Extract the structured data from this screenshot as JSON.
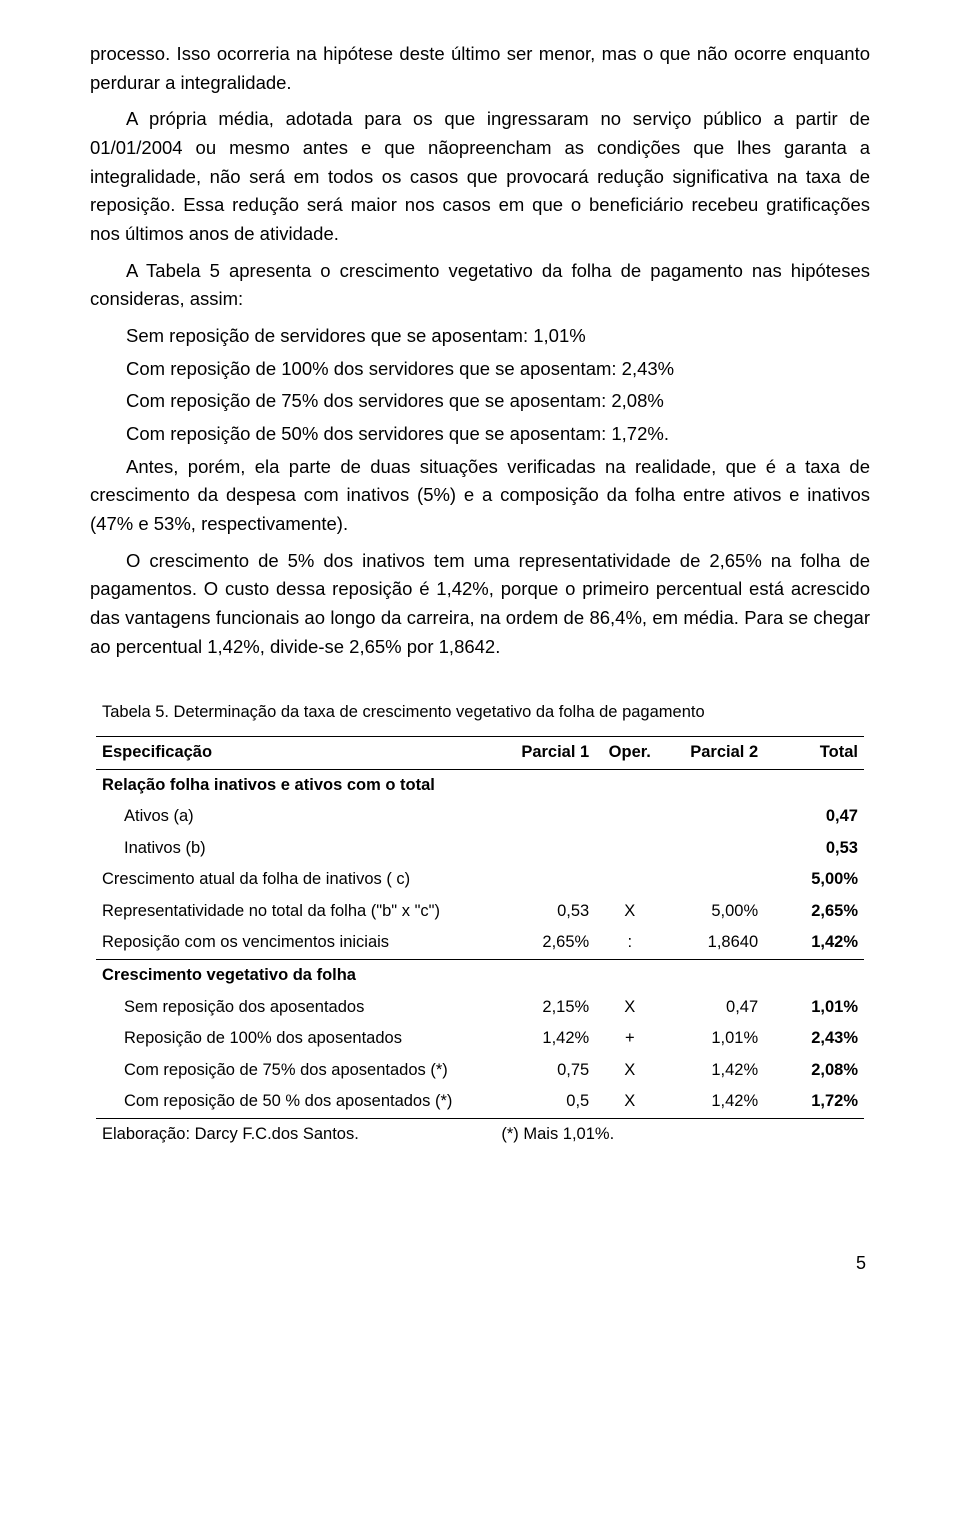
{
  "paragraphs": {
    "p1": "processo. Isso ocorreria na hipótese deste último ser menor, mas o que não ocorre enquanto perdurar a integralidade.",
    "p2": "A própria média, adotada para os que ingressaram no serviço público a partir de 01/01/2004 ou mesmo antes e que nãopreencham as condições que lhes garanta a integralidade, não será em todos os casos que provocará redução significativa na taxa de reposição. Essa redução será maior nos casos em que o beneficiário recebeu gratificações nos últimos anos de atividade.",
    "p3": "A Tabela 5 apresenta o crescimento vegetativo da folha de pagamento nas hipóteses consideras, assim:",
    "l1": "Sem reposição de servidores que se aposentam: 1,01%",
    "l2": "Com reposição de 100% dos servidores que se aposentam: 2,43%",
    "l3": "Com reposição de 75% dos servidores que se aposentam: 2,08%",
    "l4": "Com reposição de 50% dos servidores que se aposentam: 1,72%.",
    "p4": "Antes, porém, ela parte de duas situações verificadas na realidade, que é a taxa de crescimento da despesa com inativos (5%) e a composição da folha entre ativos e inativos (47% e 53%, respectivamente).",
    "p5": "O crescimento de 5% dos inativos tem uma representatividade de 2,65% na folha de pagamentos. O custo dessa reposição é 1,42%, porque o primeiro percentual está acrescido das vantagens funcionais ao longo da carreira, na ordem de 86,4%, em média. Para se chegar ao percentual 1,42%, divide-se 2,65% por 1,8642."
  },
  "table": {
    "title": "Tabela 5. Determinação da taxa de crescimento vegetativo da folha de pagamento",
    "headers": {
      "c0": "Especificação",
      "c1": "Parcial 1",
      "c2": "Oper.",
      "c3": "Parcial 2",
      "c4": "Total"
    },
    "rows": {
      "sec1": "Relação folha inativos e ativos com o total",
      "r_ativos": {
        "label": "Ativos (a)",
        "total": "0,47"
      },
      "r_inativos": {
        "label": "Inativos (b)",
        "total": "0,53"
      },
      "r_cresc": {
        "label": "Crescimento atual da folha de inativos  ( c)",
        "total": "5,00%"
      },
      "r_repr": {
        "label": "Representatividade no total da folha (\"b\" x \"c\")",
        "p1": "0,53",
        "op": "X",
        "p2": "5,00%",
        "total": "2,65%"
      },
      "r_repo": {
        "label": "Reposição com os vencimentos iniciais",
        "p1": "2,65%",
        "op": ":",
        "p2": "1,8640",
        "total": "1,42%"
      },
      "sec2": "Crescimento vegetativo da folha",
      "r_sem": {
        "label": "Sem reposição dos aposentados",
        "p1": "2,15%",
        "op": "X",
        "p2": "0,47",
        "total": "1,01%"
      },
      "r_100": {
        "label": "Reposição de 100% dos aposentados",
        "p1": "1,42%",
        "op": "+",
        "p2": "1,01%",
        "total": "2,43%"
      },
      "r_75": {
        "label": "Com reposição de 75% dos aposentados (*)",
        "p1": "0,75",
        "op": "X",
        "p2": "1,42%",
        "total": "2,08%"
      },
      "r_50": {
        "label": "Com reposição de 50 % dos aposentados (*)",
        "p1": "0,5",
        "op": "X",
        "p2": "1,42%",
        "total": "1,72%"
      },
      "foot_label": "Elaboração: Darcy F.C.dos Santos.",
      "foot_note": "(*) Mais 1,01%."
    }
  },
  "page_number": "5"
}
